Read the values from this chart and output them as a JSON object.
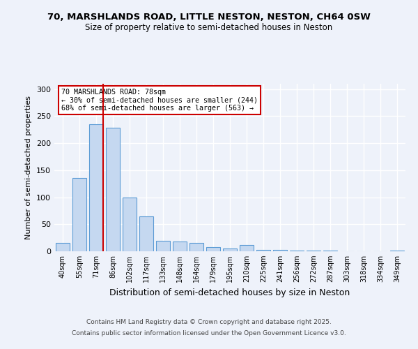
{
  "title1": "70, MARSHLANDS ROAD, LITTLE NESTON, NESTON, CH64 0SW",
  "title2": "Size of property relative to semi-detached houses in Neston",
  "xlabel": "Distribution of semi-detached houses by size in Neston",
  "ylabel": "Number of semi-detached properties",
  "categories": [
    "40sqm",
    "55sqm",
    "71sqm",
    "86sqm",
    "102sqm",
    "117sqm",
    "133sqm",
    "148sqm",
    "164sqm",
    "179sqm",
    "195sqm",
    "210sqm",
    "225sqm",
    "241sqm",
    "256sqm",
    "272sqm",
    "287sqm",
    "303sqm",
    "318sqm",
    "334sqm",
    "349sqm"
  ],
  "bar_values": [
    15,
    135,
    235,
    228,
    100,
    65,
    20,
    18,
    15,
    8,
    5,
    12,
    3,
    2,
    1,
    1,
    1,
    0,
    0,
    0,
    1
  ],
  "bar_color": "#c5d8f0",
  "bar_edge_color": "#5b9bd5",
  "property_bin_index": 2,
  "property_label": "70 MARSHLANDS ROAD: 78sqm",
  "annotation_smaller": "← 30% of semi-detached houses are smaller (244)",
  "annotation_larger": "68% of semi-detached houses are larger (563) →",
  "vline_color": "#cc0000",
  "annotation_box_color": "#ffffff",
  "annotation_box_edge": "#cc0000",
  "ylim": [
    0,
    310
  ],
  "yticks": [
    0,
    50,
    100,
    150,
    200,
    250,
    300
  ],
  "footer1": "Contains HM Land Registry data © Crown copyright and database right 2025.",
  "footer2": "Contains public sector information licensed under the Open Government Licence v3.0.",
  "bg_color": "#eef2fa",
  "plot_bg_color": "#eef2fa"
}
